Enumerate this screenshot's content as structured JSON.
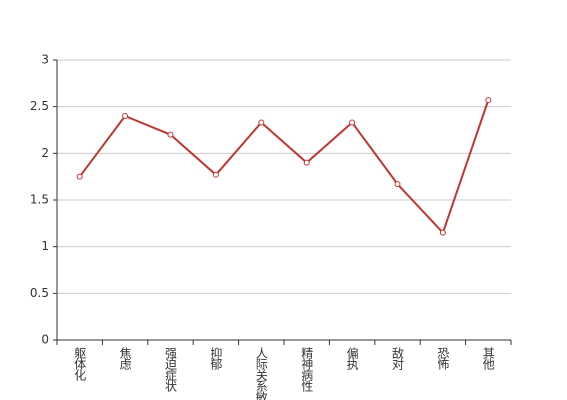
{
  "chart_data": {
    "type": "line",
    "categories": [
      "躯体化",
      "焦虑",
      "强迫症状",
      "抑郁",
      "人际关系敏感",
      "精神病性",
      "偏执",
      "敌对",
      "恐怖",
      "其他"
    ],
    "values": [
      1.75,
      2.4,
      2.2,
      1.77,
      2.33,
      1.9,
      2.33,
      1.67,
      1.15,
      2.57
    ],
    "color": "#c23531",
    "ylim": [
      0,
      3
    ],
    "yticks": [
      0,
      0.5,
      1,
      1.5,
      2,
      2.5,
      3
    ],
    "grid": true
  }
}
